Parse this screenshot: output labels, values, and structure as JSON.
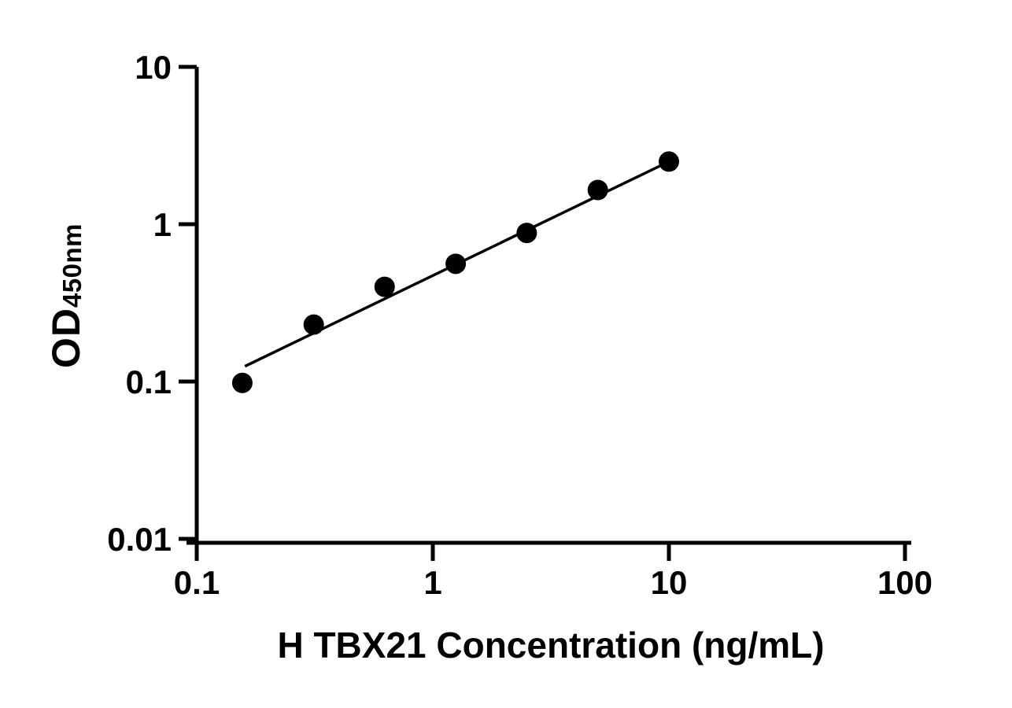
{
  "chart_data": {
    "type": "scatter",
    "title": "",
    "xlabel": "H TBX21 Concentration (ng/mL)",
    "ylabel": "OD",
    "ylabel_subscript": "450nm",
    "x_scale": "log",
    "y_scale": "log",
    "xlim": [
      0.1,
      100
    ],
    "ylim": [
      0.01,
      10
    ],
    "x_ticks": [
      0.1,
      1,
      10,
      100
    ],
    "y_ticks": [
      0.01,
      0.1,
      1,
      10
    ],
    "grid": "off",
    "legend": "none",
    "marker_color": "#000000",
    "line_color": "#000000",
    "points": [
      {
        "x": 0.156,
        "y": 0.098
      },
      {
        "x": 0.313,
        "y": 0.23
      },
      {
        "x": 0.625,
        "y": 0.4
      },
      {
        "x": 1.25,
        "y": 0.56
      },
      {
        "x": 2.5,
        "y": 0.88
      },
      {
        "x": 5,
        "y": 1.65
      },
      {
        "x": 10,
        "y": 2.5
      }
    ],
    "trend_line": {
      "x1": 0.16,
      "y1": 0.125,
      "x2": 10,
      "y2": 2.5
    }
  }
}
